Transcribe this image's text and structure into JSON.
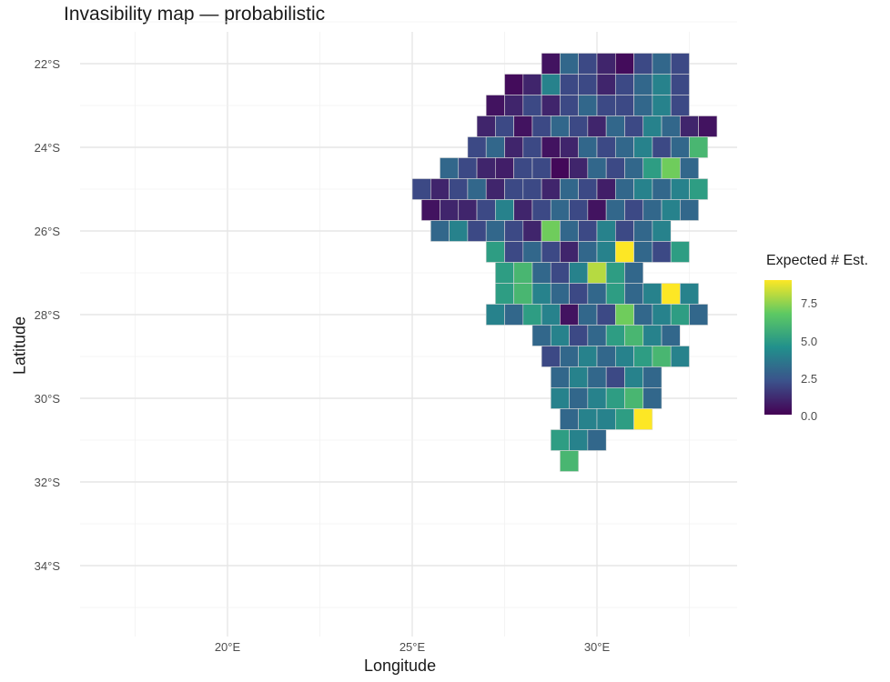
{
  "title": "Invasibility map — probabilistic",
  "xlabel": "Longitude",
  "ylabel": "Latitude",
  "legend": {
    "title": "Expected # Est.",
    "ticks": [
      "0.0",
      "2.5",
      "5.0",
      "7.5"
    ],
    "range": [
      0,
      9
    ],
    "colors": [
      "#440154",
      "#3b528b",
      "#21908c",
      "#5dc963",
      "#fde725"
    ]
  },
  "axes": {
    "x_ticks": [
      "20°E",
      "25°E",
      "30°E"
    ],
    "y_ticks": [
      "22°S",
      "24°S",
      "26°S",
      "28°S",
      "30°S",
      "32°S",
      "34°S"
    ],
    "xlim": [
      16.0,
      34.0
    ],
    "ylim": [
      -35.5,
      -21.5
    ],
    "grid": true
  },
  "chart_data": {
    "type": "heatmap",
    "cell_size_deg": 0.5,
    "note_fields": [
      "lon",
      "lat",
      "value"
    ],
    "rows": [
      {
        "lat": -22.0,
        "lon_start": 28.75,
        "values": [
          0.5,
          3,
          2,
          1,
          0.3,
          2,
          3,
          2
        ]
      },
      {
        "lat": -22.5,
        "lon_start": 27.75,
        "values": [
          0.3,
          1,
          4,
          2,
          2,
          1,
          2,
          3,
          4,
          2
        ]
      },
      {
        "lat": -23.0,
        "lon_start": 27.25,
        "values": [
          0.5,
          1,
          2,
          1,
          2,
          3,
          2,
          2,
          3,
          4,
          2
        ]
      },
      {
        "lat": -23.5,
        "lon_start": 27.0,
        "values": [
          1,
          2,
          0.5,
          2,
          3,
          2,
          1,
          3,
          2,
          4,
          3,
          1,
          0.5
        ]
      },
      {
        "lat": -24.0,
        "lon_start": 26.75,
        "values": [
          2,
          3,
          1,
          2,
          0.5,
          1,
          3,
          2,
          3,
          4,
          2,
          3,
          6
        ]
      },
      {
        "lat": -24.5,
        "lon_start": 26.0,
        "values": [
          3,
          2,
          1,
          0.8,
          2,
          2,
          0.2,
          1,
          3,
          2,
          3,
          5,
          7,
          3
        ]
      },
      {
        "lat": -25.0,
        "lon_start": 25.25,
        "values": [
          2,
          1,
          2,
          3,
          1,
          2,
          2,
          1,
          3,
          2,
          0.8,
          3,
          4,
          3,
          4,
          5
        ]
      },
      {
        "lat": -25.5,
        "lon_start": 25.5,
        "values": [
          0.5,
          1,
          1,
          2,
          4,
          1,
          2,
          3,
          2,
          0.5,
          3,
          2,
          3,
          4,
          3
        ]
      },
      {
        "lat": -26.0,
        "lon_start": 25.75,
        "values": [
          3,
          4,
          2,
          3,
          2,
          1,
          7,
          3,
          2,
          4,
          2,
          3,
          4
        ]
      },
      {
        "lat": -26.5,
        "lon_start": 27.25,
        "values": [
          5,
          2,
          3,
          2,
          1,
          3,
          4,
          9,
          3,
          2,
          5
        ]
      },
      {
        "lat": -27.0,
        "lon_start": 27.5,
        "values": [
          5,
          6,
          3,
          2,
          4,
          8,
          5,
          3
        ]
      },
      {
        "lat": -27.5,
        "lon_start": 27.5,
        "values": [
          5,
          6,
          4,
          3,
          2,
          3,
          5,
          3,
          4,
          9,
          4
        ]
      },
      {
        "lat": -28.0,
        "lon_start": 27.25,
        "values": [
          4,
          3,
          5,
          4,
          0.5,
          3,
          2,
          7,
          3,
          4,
          5,
          3
        ]
      },
      {
        "lat": -28.5,
        "lon_start": 28.5,
        "values": [
          3,
          4,
          2,
          3,
          5,
          6,
          4,
          3
        ]
      },
      {
        "lat": -29.0,
        "lon_start": 28.75,
        "values": [
          2,
          3,
          4,
          3,
          4,
          5,
          6,
          4
        ]
      },
      {
        "lat": -29.5,
        "lon_start": 29.0,
        "values": [
          3,
          4,
          3,
          2,
          4,
          3
        ]
      },
      {
        "lat": -30.0,
        "lon_start": 29.0,
        "values": [
          4,
          3,
          4,
          5,
          6,
          3
        ]
      },
      {
        "lat": -30.5,
        "lon_start": 29.25,
        "values": [
          3,
          4,
          4,
          5,
          9
        ]
      },
      {
        "lat": -31.0,
        "lon_start": 29.0,
        "values": [
          5,
          4,
          3
        ]
      },
      {
        "lat": -31.5,
        "lon_start": 29.25,
        "values": [
          6
        ]
      }
    ]
  }
}
